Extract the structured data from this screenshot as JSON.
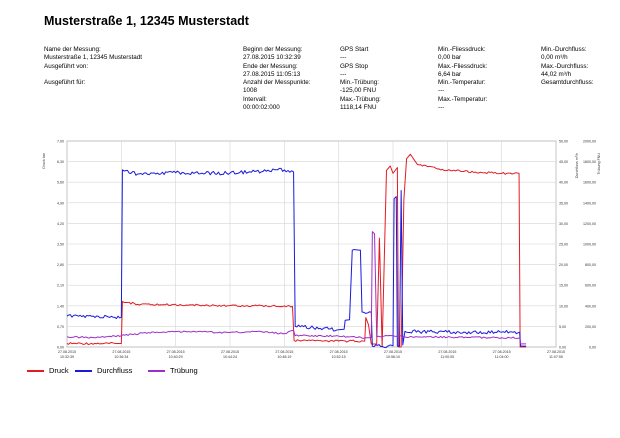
{
  "title": "Musterstraße 1, 12345 Musterstadt",
  "meta": {
    "col1": [
      "Name der Messung:",
      "Musterstraße 1, 12345 Musterstadt",
      "Ausgeführt von:",
      "",
      "Ausgeführt für:"
    ],
    "col2": [
      "Beginn der Messung:",
      "27.08.2015 10:32:39",
      "Ende der Messung:",
      "27.08.2015 11:05:13",
      "Anzahl der Messpunkte:",
      "1008",
      "Intervall:",
      "00:00:02:000"
    ],
    "col3": [
      "GPS Start",
      "---",
      "GPS Stop",
      "---",
      "Min.-Trübung:",
      "-125,00 FNU",
      "Max.-Trübung:",
      "1118,14 FNU"
    ],
    "col4": [
      "Min.-Fliessdruck:",
      "0,00 bar",
      "Max.-Fliessdruck:",
      "6,64 bar",
      "Min.-Temperatur:",
      "---",
      "Max.-Temperatur:",
      "---"
    ],
    "col5": [
      "Min.-Durchfluss:",
      "0,00 m³/h",
      "Max.-Durchfluss:",
      "44,02 m³/h",
      "Gesamtdurchfluss:"
    ]
  },
  "chart_data": {
    "type": "line",
    "title": "",
    "xlabel": "",
    "ylabel_left": "Druck bar",
    "ylabel_right_1": "Durchfluss m³/h",
    "ylabel_right_2": "Trübung FNU",
    "grid": true,
    "legend_position": "bottom-left",
    "x_ticks": [
      "27.08.2015 10:32:39",
      "27.08.2015 10:36:34",
      "27.08.2015 10:40:29",
      "27.08.2015 10:44:24",
      "27.08.2015 10:48:19",
      "27.08.2015 10:52:15",
      "27.08.2015 10:56:10",
      "27.08.2015 11:00:05",
      "27.08.2015 11:04:00",
      "27.08.2015 11:07:55"
    ],
    "y_left_ticks": [
      "0,00",
      "0,70",
      "1,40",
      "2,10",
      "2,80",
      "3,50",
      "4,20",
      "4,90",
      "5,60",
      "6,30",
      "7,00"
    ],
    "y_right1_ticks": [
      "0,00",
      "5,00",
      "10,00",
      "15,00",
      "20,00",
      "25,00",
      "30,00",
      "35,00",
      "40,00",
      "45,00",
      "50,00"
    ],
    "y_right2_ticks": [
      "0,00",
      "200,00",
      "400,00",
      "600,00",
      "800,00",
      "1000,00",
      "1200,00",
      "1400,00",
      "1600,00",
      "1800,00",
      "2000,00"
    ],
    "xlim": [
      0,
      9
    ],
    "ylim_left": [
      0,
      7
    ],
    "ylim_right1": [
      0,
      50
    ],
    "ylim_right2": [
      0,
      2000
    ],
    "series": [
      {
        "name": "Druck",
        "color": "#e31b23",
        "axis": "left",
        "points": [
          [
            0,
            0.12
          ],
          [
            0.9,
            0.12
          ],
          [
            1.0,
            0.12
          ],
          [
            1.02,
            1.55
          ],
          [
            1.3,
            1.45
          ],
          [
            2.5,
            1.42
          ],
          [
            3.5,
            1.4
          ],
          [
            4.0,
            1.4
          ],
          [
            4.15,
            1.38
          ],
          [
            4.18,
            0.22
          ],
          [
            5.0,
            0.2
          ],
          [
            5.48,
            0.2
          ],
          [
            5.5,
            1.0
          ],
          [
            5.55,
            0.75
          ],
          [
            5.6,
            0.1
          ],
          [
            5.7,
            0.1
          ],
          [
            5.75,
            3.7
          ],
          [
            5.8,
            0.0
          ],
          [
            5.88,
            6.0
          ],
          [
            5.95,
            6.15
          ],
          [
            6.0,
            5.9
          ],
          [
            6.08,
            6.1
          ],
          [
            6.1,
            0.0
          ],
          [
            6.15,
            0.0
          ],
          [
            6.2,
            5.0
          ],
          [
            6.25,
            6.4
          ],
          [
            6.32,
            6.55
          ],
          [
            6.45,
            6.2
          ],
          [
            7.0,
            6.0
          ],
          [
            8.0,
            5.9
          ],
          [
            8.32,
            5.9
          ],
          [
            8.34,
            0.0
          ],
          [
            8.45,
            0.0
          ]
        ]
      },
      {
        "name": "Durchfluss",
        "color": "#1a1adb",
        "axis": "right1",
        "points": [
          [
            0,
            7.5
          ],
          [
            1.0,
            7.2
          ],
          [
            1.02,
            43.0
          ],
          [
            1.3,
            42.0
          ],
          [
            2.0,
            42.3
          ],
          [
            3.0,
            42.2
          ],
          [
            4.0,
            43.0
          ],
          [
            4.17,
            42.5
          ],
          [
            4.2,
            5.0
          ],
          [
            5.0,
            4.2
          ],
          [
            5.1,
            4.3
          ],
          [
            5.12,
            6.5
          ],
          [
            5.2,
            6.6
          ],
          [
            5.25,
            23.5
          ],
          [
            5.4,
            23.5
          ],
          [
            5.43,
            8.5
          ],
          [
            5.6,
            8.5
          ],
          [
            5.62,
            0.2
          ],
          [
            5.9,
            0.2
          ],
          [
            5.95,
            0.5
          ],
          [
            6.0,
            0.3
          ],
          [
            6.02,
            36.0
          ],
          [
            6.06,
            36.5
          ],
          [
            6.08,
            0.2
          ],
          [
            6.12,
            0.2
          ],
          [
            6.15,
            38.0
          ],
          [
            6.18,
            0.5
          ],
          [
            6.22,
            3.8
          ],
          [
            7.0,
            3.6
          ],
          [
            8.0,
            3.6
          ],
          [
            8.33,
            3.6
          ],
          [
            8.35,
            0.2
          ],
          [
            8.45,
            0.2
          ]
        ]
      },
      {
        "name": "Trübung",
        "color": "#9b30c8",
        "axis": "right2",
        "points": [
          [
            0,
            100
          ],
          [
            0.5,
            90
          ],
          [
            1.0,
            110
          ],
          [
            1.5,
            140
          ],
          [
            2.0,
            150
          ],
          [
            3.0,
            140
          ],
          [
            3.5,
            150
          ],
          [
            4.0,
            130
          ],
          [
            4.17,
            160
          ],
          [
            4.2,
            110
          ],
          [
            5.0,
            105
          ],
          [
            5.5,
            90
          ],
          [
            5.6,
            90
          ],
          [
            5.62,
            1120
          ],
          [
            5.66,
            1100
          ],
          [
            5.7,
            100
          ],
          [
            6.0,
            110
          ],
          [
            6.2,
            100
          ],
          [
            7.0,
            95
          ],
          [
            8.0,
            90
          ],
          [
            8.33,
            90
          ],
          [
            8.35,
            30
          ],
          [
            8.45,
            30
          ]
        ]
      }
    ]
  }
}
